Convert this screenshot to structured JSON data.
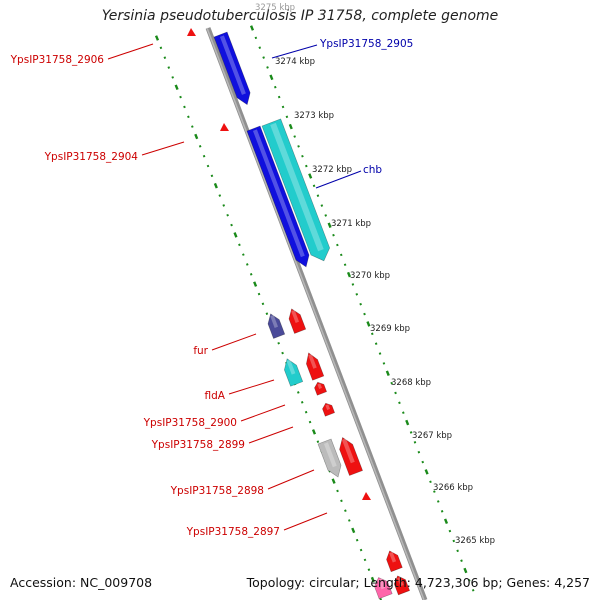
{
  "title": "Yersinia pseudotuberculosis IP 31758, complete genome",
  "footer": {
    "accession_label": "Accession: NC_009708",
    "stats_label": "Topology: circular; Length: 4,723,306 bp; Genes: 4,257"
  },
  "colors": {
    "backbone": "#909090",
    "ticks": "#1a8a1a",
    "gene_blue": "#1010dd",
    "gene_cyan": "#22cccc",
    "gene_red": "#ee1111",
    "gene_navy": "#4a4a99",
    "gene_gray": "#bbbbbb",
    "gene_pink": "#ff66aa",
    "label_red": "#cc0000",
    "label_blue": "#0000aa"
  },
  "kbp_labels": [
    "3275 kbp",
    "3274 kbp",
    "3273 kbp",
    "3272 kbp",
    "3271 kbp",
    "3270 kbp",
    "3269 kbp",
    "3268 kbp",
    "3267 kbp",
    "3266 kbp",
    "3265 kbp"
  ],
  "gene_labels": [
    {
      "text": "YpsIP31758_2906",
      "color": "red"
    },
    {
      "text": "YpsIP31758_2905",
      "color": "blue"
    },
    {
      "text": "YpsIP31758_2904",
      "color": "red"
    },
    {
      "text": "chb",
      "color": "blue"
    },
    {
      "text": "fur",
      "color": "red"
    },
    {
      "text": "fldA",
      "color": "red"
    },
    {
      "text": "YpsIP31758_2900",
      "color": "red"
    },
    {
      "text": "YpsIP31758_2899",
      "color": "red"
    },
    {
      "text": "YpsIP31758_2898",
      "color": "red"
    },
    {
      "text": "YpsIP31758_2897",
      "color": "red"
    }
  ]
}
